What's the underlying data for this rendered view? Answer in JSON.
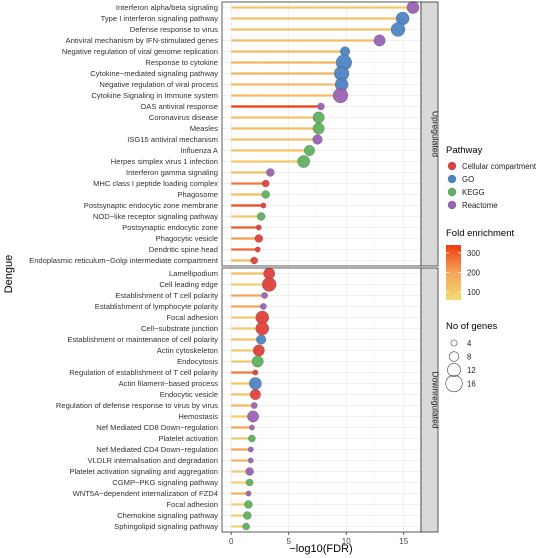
{
  "chart_data": {
    "type": "lollipop",
    "xlabel": "−log10(FDR)",
    "ylabel": "Dengue",
    "xlim": [
      -0.8,
      16.5
    ],
    "xticks": [
      0,
      5,
      10,
      15
    ],
    "grid": true,
    "panels": [
      {
        "name": "Upregulated",
        "terms": [
          {
            "label": "Interferon alpha/beta signaling",
            "x": 15.8,
            "pathway": "Reactome",
            "fold_enrichment": 110,
            "genes": 11
          },
          {
            "label": "Type I interferon signaling pathway",
            "x": 14.9,
            "pathway": "GO",
            "fold_enrichment": 130,
            "genes": 12
          },
          {
            "label": "Defense response to virus",
            "x": 14.5,
            "pathway": "GO",
            "fold_enrichment": 130,
            "genes": 13
          },
          {
            "label": "Antiviral mechanism by IFN-stimulated genes",
            "x": 12.9,
            "pathway": "Reactome",
            "fold_enrichment": 140,
            "genes": 10
          },
          {
            "label": "Negative regulation of viral genome replication",
            "x": 9.9,
            "pathway": "GO",
            "fold_enrichment": 150,
            "genes": 8
          },
          {
            "label": "Response to cytokine",
            "x": 9.8,
            "pathway": "GO",
            "fold_enrichment": 160,
            "genes": 15
          },
          {
            "label": "Cytokine−mediated signaling pathway",
            "x": 9.6,
            "pathway": "GO",
            "fold_enrichment": 160,
            "genes": 14
          },
          {
            "label": "Negative regulation of viral process",
            "x": 9.6,
            "pathway": "GO",
            "fold_enrichment": 150,
            "genes": 12
          },
          {
            "label": "Cytokine Signaling in Immune system",
            "x": 9.5,
            "pathway": "Reactome",
            "fold_enrichment": 150,
            "genes": 14
          },
          {
            "label": "OAS antiviral response",
            "x": 7.8,
            "pathway": "Reactome",
            "fold_enrichment": 340,
            "genes": 5
          },
          {
            "label": "Coronavirus disease",
            "x": 7.6,
            "pathway": "KEGG",
            "fold_enrichment": 120,
            "genes": 10
          },
          {
            "label": "Measles",
            "x": 7.6,
            "pathway": "KEGG",
            "fold_enrichment": 140,
            "genes": 10
          },
          {
            "label": "ISG15 antiviral mechanism",
            "x": 7.5,
            "pathway": "Reactome",
            "fold_enrichment": 140,
            "genes": 8
          },
          {
            "label": "Influenza A",
            "x": 6.8,
            "pathway": "KEGG",
            "fold_enrichment": 120,
            "genes": 9
          },
          {
            "label": "Herpes simplex virus 1 infection",
            "x": 6.3,
            "pathway": "KEGG",
            "fold_enrichment": 110,
            "genes": 11
          },
          {
            "label": "Interferon gamma signaling",
            "x": 3.4,
            "pathway": "Reactome",
            "fold_enrichment": 130,
            "genes": 6
          },
          {
            "label": "MHC class I peptide loading complex",
            "x": 3.0,
            "pathway": "Cellular compartment",
            "fold_enrichment": 260,
            "genes": 5
          },
          {
            "label": "Phagosome",
            "x": 3.0,
            "pathway": "KEGG",
            "fold_enrichment": 140,
            "genes": 6
          },
          {
            "label": "Postsynaptic endocytic zone membrane",
            "x": 2.8,
            "pathway": "Cellular compartment",
            "fold_enrichment": 320,
            "genes": 3
          },
          {
            "label": "NOD−like receptor signaling pathway",
            "x": 2.6,
            "pathway": "KEGG",
            "fold_enrichment": 110,
            "genes": 6
          },
          {
            "label": "Postsynaptic endocytic zone",
            "x": 2.4,
            "pathway": "Cellular compartment",
            "fold_enrichment": 300,
            "genes": 3
          },
          {
            "label": "Phagocytic vesicle",
            "x": 2.4,
            "pathway": "Cellular compartment",
            "fold_enrichment": 210,
            "genes": 6
          },
          {
            "label": "Dendritic spine head",
            "x": 2.3,
            "pathway": "Cellular compartment",
            "fold_enrichment": 280,
            "genes": 3
          },
          {
            "label": "Endoplasmic reticulum−Golgi intermediate compartment",
            "x": 2.0,
            "pathway": "Cellular compartment",
            "fold_enrichment": 150,
            "genes": 5
          }
        ]
      },
      {
        "name": "Downregulated",
        "terms": [
          {
            "label": "Lamellipodium",
            "x": 3.3,
            "pathway": "Cellular compartment",
            "fold_enrichment": 130,
            "genes": 10
          },
          {
            "label": "Cell leading edge",
            "x": 3.3,
            "pathway": "Cellular compartment",
            "fold_enrichment": 100,
            "genes": 13
          },
          {
            "label": "Establishment of T cell polarity",
            "x": 2.9,
            "pathway": "Reactome",
            "fold_enrichment": 200,
            "genes": 4
          },
          {
            "label": "Establishment of lymphocyte polarity",
            "x": 2.8,
            "pathway": "Reactome",
            "fold_enrichment": 200,
            "genes": 4
          },
          {
            "label": "Focal adhesion",
            "x": 2.7,
            "pathway": "Cellular compartment",
            "fold_enrichment": 110,
            "genes": 12
          },
          {
            "label": "Cell−substrate junction",
            "x": 2.7,
            "pathway": "Cellular compartment",
            "fold_enrichment": 110,
            "genes": 12
          },
          {
            "label": "Establishment or maintenance of cell polarity",
            "x": 2.6,
            "pathway": "GO",
            "fold_enrichment": 120,
            "genes": 8
          },
          {
            "label": "Actin cytoskeleton",
            "x": 2.4,
            "pathway": "Cellular compartment",
            "fold_enrichment": 110,
            "genes": 10
          },
          {
            "label": "Endocytosis",
            "x": 2.3,
            "pathway": "KEGG",
            "fold_enrichment": 110,
            "genes": 10
          },
          {
            "label": "Regulation of establishment of T cell polarity",
            "x": 2.1,
            "pathway": "Cellular compartment",
            "fold_enrichment": 260,
            "genes": 3
          },
          {
            "label": "Actin filament−based process",
            "x": 2.1,
            "pathway": "GO",
            "fold_enrichment": 110,
            "genes": 11
          },
          {
            "label": "Endocytic vesicle",
            "x": 2.1,
            "pathway": "Cellular compartment",
            "fold_enrichment": 120,
            "genes": 9
          },
          {
            "label": "Regulation of defense response to virus by virus",
            "x": 2.0,
            "pathway": "Reactome",
            "fold_enrichment": 150,
            "genes": 4
          },
          {
            "label": "Hemostasis",
            "x": 1.9,
            "pathway": "Reactome",
            "fold_enrichment": 100,
            "genes": 10
          },
          {
            "label": "Nef Mediated CD8 Down−regulation",
            "x": 1.8,
            "pathway": "Reactome",
            "fold_enrichment": 200,
            "genes": 3
          },
          {
            "label": "Platelet activation",
            "x": 1.8,
            "pathway": "KEGG",
            "fold_enrichment": 110,
            "genes": 5
          },
          {
            "label": "Nef Mediated CD4 Down−regulation",
            "x": 1.7,
            "pathway": "Reactome",
            "fold_enrichment": 200,
            "genes": 3
          },
          {
            "label": "VLDLR internalisation and degradation",
            "x": 1.7,
            "pathway": "Reactome",
            "fold_enrichment": 160,
            "genes": 3
          },
          {
            "label": "Platelet activation signaling and aggregation",
            "x": 1.6,
            "pathway": "Reactome",
            "fold_enrichment": 100,
            "genes": 6
          },
          {
            "label": "CGMP−PKG signaling pathway",
            "x": 1.6,
            "pathway": "KEGG",
            "fold_enrichment": 90,
            "genes": 5
          },
          {
            "label": "WNT5A−dependent internalization of FZD4",
            "x": 1.5,
            "pathway": "Reactome",
            "fold_enrichment": 180,
            "genes": 3
          },
          {
            "label": "Focal adhesion",
            "x": 1.5,
            "pathway": "KEGG",
            "fold_enrichment": 90,
            "genes": 6
          },
          {
            "label": "Chemokine signaling pathway",
            "x": 1.4,
            "pathway": "KEGG",
            "fold_enrichment": 90,
            "genes": 6
          },
          {
            "label": "Sphingolipid signaling pathway",
            "x": 1.3,
            "pathway": "KEGG",
            "fold_enrichment": 90,
            "genes": 5
          }
        ]
      }
    ],
    "legend": {
      "pathway_title": "Pathway",
      "pathways": [
        {
          "name": "Cellular compartment",
          "color": "#e0403c"
        },
        {
          "name": "GO",
          "color": "#4e84c4"
        },
        {
          "name": "KEGG",
          "color": "#5fb25f"
        },
        {
          "name": "Reactome",
          "color": "#9a62b4"
        }
      ],
      "fold_title": "Fold enrichment",
      "fold_ticks": [
        100,
        200,
        300
      ],
      "fold_range": [
        60,
        340
      ],
      "fold_colors": [
        "#f2dc72",
        "#f4a55a",
        "#ef3a10"
      ],
      "genes_title": "No of genes",
      "genes_ticks": [
        4,
        8,
        12,
        16
      ]
    }
  }
}
